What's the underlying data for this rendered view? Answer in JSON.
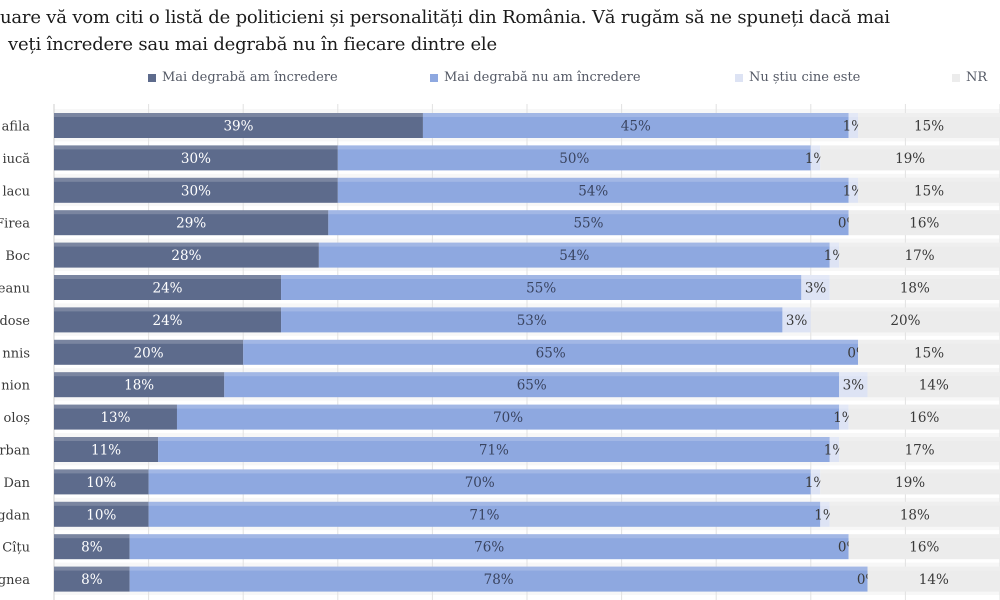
{
  "chart_data": {
    "type": "bar",
    "orientation": "horizontal",
    "stacked": true,
    "normalized": true,
    "title_lines": [
      "uare vă vom citi o listă de politicieni și personalități din România. Vă rugăm să ne spuneți dacă mai",
      "veți încredere sau mai degrabă nu în fiecare dintre ele"
    ],
    "legend_position": "top",
    "grid": true,
    "categories": [
      "afila",
      "iucă",
      "lacu",
      "Firea",
      "Boc",
      "eanu",
      "dose",
      "nnis",
      "nion",
      "oloș",
      "rban",
      "Dan",
      "gdan",
      "Cîțu",
      "gnea"
    ],
    "series": [
      {
        "name": "Mai degrabă am încredere",
        "color": "#5d6b8c",
        "label_color": "#ffffff",
        "values": [
          39,
          30,
          30,
          29,
          28,
          24,
          24,
          20,
          18,
          13,
          11,
          10,
          10,
          8,
          8
        ]
      },
      {
        "name": "Mai degrabă nu am încredere",
        "color": "#8ea8e0",
        "label_color": "#3a4460",
        "values": [
          45,
          50,
          54,
          55,
          54,
          55,
          53,
          65,
          65,
          70,
          71,
          70,
          71,
          76,
          78
        ]
      },
      {
        "name": "Nu știu cine este",
        "color": "#dde3f4",
        "label_color": "#3a3a3a",
        "values": [
          1,
          1,
          1,
          0,
          1,
          3,
          3,
          0,
          3,
          1,
          1,
          1,
          1,
          0,
          0
        ]
      },
      {
        "name": "NR",
        "color": "#ececec",
        "label_color": "#3a3a3a",
        "values": [
          15,
          19,
          15,
          16,
          17,
          18,
          20,
          15,
          14,
          16,
          17,
          19,
          18,
          16,
          14
        ]
      }
    ],
    "value_suffix": "%"
  }
}
